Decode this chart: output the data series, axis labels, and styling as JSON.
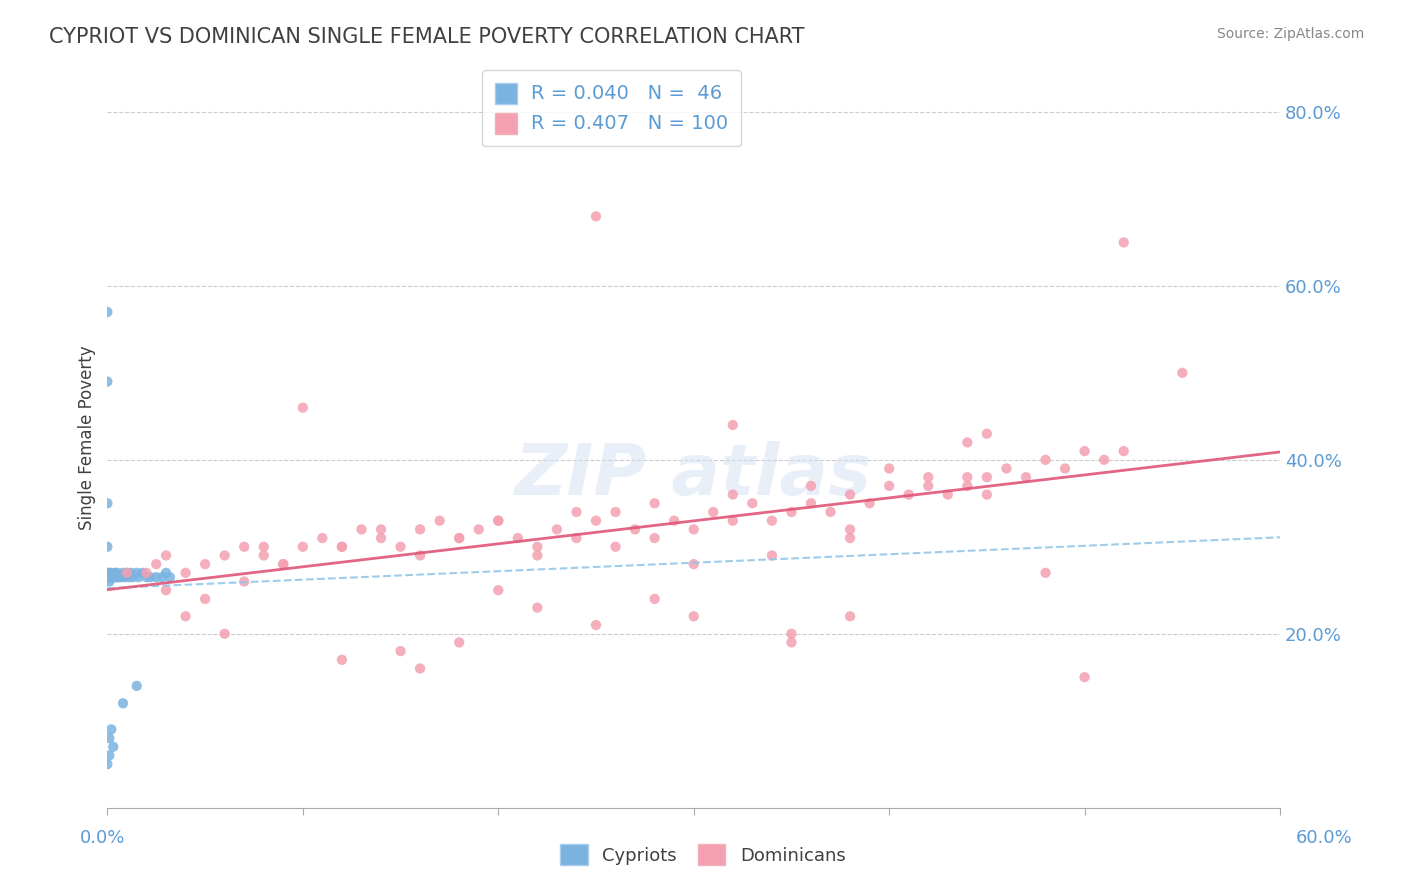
{
  "title": "CYPRIOT VS DOMINICAN SINGLE FEMALE POVERTY CORRELATION CHART",
  "source": "Source: ZipAtlas.com",
  "ylabel": "Single Female Poverty",
  "xlim": [
    0.0,
    0.6
  ],
  "ylim": [
    0.0,
    0.85
  ],
  "R_cypriot": 0.04,
  "N_cypriot": 46,
  "R_dominican": 0.407,
  "N_dominican": 100,
  "cypriot_color": "#7ab3e0",
  "dominican_color": "#f4a0b0",
  "cypriot_line_color": "#8ec4e8",
  "dominican_line_color": "#e05577",
  "background_color": "#ffffff",
  "grid_color": "#cccccc",
  "title_color": "#404040",
  "axis_label_color": "#5b9bd5",
  "legend_R_color": "#5b9bd5",
  "cypriot_x": [
    0.0,
    0.0,
    0.0,
    0.0,
    0.0,
    0.001,
    0.001,
    0.001,
    0.001,
    0.001,
    0.001,
    0.002,
    0.002,
    0.002,
    0.002,
    0.003,
    0.003,
    0.003,
    0.004,
    0.004,
    0.005,
    0.005,
    0.006,
    0.007,
    0.008,
    0.009,
    0.01,
    0.011,
    0.012,
    0.013,
    0.015,
    0.016,
    0.018,
    0.02,
    0.022,
    0.025,
    0.028,
    0.03,
    0.032,
    0.015,
    0.008,
    0.003,
    0.001,
    0.002,
    0.001,
    0.0
  ],
  "cypriot_y": [
    0.57,
    0.49,
    0.35,
    0.3,
    0.27,
    0.27,
    0.265,
    0.265,
    0.265,
    0.265,
    0.26,
    0.265,
    0.265,
    0.27,
    0.265,
    0.265,
    0.265,
    0.265,
    0.27,
    0.265,
    0.265,
    0.27,
    0.265,
    0.265,
    0.27,
    0.265,
    0.27,
    0.265,
    0.27,
    0.265,
    0.27,
    0.265,
    0.27,
    0.265,
    0.265,
    0.265,
    0.265,
    0.27,
    0.265,
    0.14,
    0.12,
    0.07,
    0.08,
    0.09,
    0.06,
    0.05
  ],
  "dominican_x": [
    0.01,
    0.02,
    0.025,
    0.03,
    0.04,
    0.05,
    0.06,
    0.07,
    0.08,
    0.09,
    0.1,
    0.11,
    0.12,
    0.13,
    0.14,
    0.15,
    0.16,
    0.17,
    0.18,
    0.19,
    0.2,
    0.21,
    0.22,
    0.23,
    0.24,
    0.25,
    0.26,
    0.27,
    0.28,
    0.29,
    0.3,
    0.31,
    0.32,
    0.33,
    0.34,
    0.35,
    0.36,
    0.37,
    0.38,
    0.39,
    0.4,
    0.41,
    0.42,
    0.43,
    0.44,
    0.45,
    0.46,
    0.47,
    0.48,
    0.49,
    0.5,
    0.51,
    0.52,
    0.03,
    0.05,
    0.07,
    0.09,
    0.12,
    0.14,
    0.16,
    0.18,
    0.2,
    0.22,
    0.24,
    0.26,
    0.28,
    0.3,
    0.32,
    0.34,
    0.36,
    0.38,
    0.4,
    0.25,
    0.35,
    0.45,
    0.15,
    0.42,
    0.38,
    0.28,
    0.22,
    0.32,
    0.18,
    0.48,
    0.44,
    0.08,
    0.12,
    0.55,
    0.5,
    0.04,
    0.06,
    0.44,
    0.38,
    0.52,
    0.3,
    0.2,
    0.16,
    0.35,
    0.25,
    0.45,
    0.1
  ],
  "dominican_y": [
    0.27,
    0.27,
    0.28,
    0.29,
    0.27,
    0.28,
    0.29,
    0.3,
    0.29,
    0.28,
    0.3,
    0.31,
    0.3,
    0.32,
    0.31,
    0.3,
    0.32,
    0.33,
    0.31,
    0.32,
    0.33,
    0.31,
    0.3,
    0.32,
    0.31,
    0.33,
    0.34,
    0.32,
    0.31,
    0.33,
    0.32,
    0.34,
    0.33,
    0.35,
    0.33,
    0.34,
    0.35,
    0.34,
    0.36,
    0.35,
    0.37,
    0.36,
    0.38,
    0.36,
    0.37,
    0.38,
    0.39,
    0.38,
    0.4,
    0.39,
    0.41,
    0.4,
    0.41,
    0.25,
    0.24,
    0.26,
    0.28,
    0.3,
    0.32,
    0.29,
    0.31,
    0.33,
    0.29,
    0.34,
    0.3,
    0.35,
    0.28,
    0.36,
    0.29,
    0.37,
    0.31,
    0.39,
    0.68,
    0.2,
    0.43,
    0.18,
    0.37,
    0.22,
    0.24,
    0.23,
    0.44,
    0.19,
    0.27,
    0.42,
    0.3,
    0.17,
    0.5,
    0.15,
    0.22,
    0.2,
    0.38,
    0.32,
    0.65,
    0.22,
    0.25,
    0.16,
    0.19,
    0.21,
    0.36,
    0.46
  ]
}
